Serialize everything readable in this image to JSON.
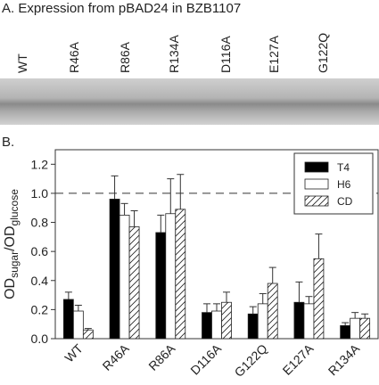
{
  "panel_a": {
    "title": "A. Expression from pBAD24 in BZB1107",
    "lanes": [
      "WT",
      "R46A",
      "R86A",
      "R134A",
      "D116A",
      "E127A",
      "G122Q"
    ]
  },
  "panel_b_label": "B.",
  "chart_data": {
    "type": "bar",
    "ylabel": [
      "OD",
      "sugar",
      "/OD",
      "glucose"
    ],
    "categories": [
      "WT",
      "R46A",
      "R86A",
      "D116A",
      "G122Q",
      "E127A",
      "R134A"
    ],
    "series": [
      {
        "name": "T4",
        "color": "#000000",
        "pattern": "solid",
        "values": [
          0.27,
          0.96,
          0.73,
          0.18,
          0.17,
          0.25,
          0.09
        ],
        "errors": [
          0.05,
          0.16,
          0.12,
          0.06,
          0.05,
          0.14,
          0.02
        ]
      },
      {
        "name": "H6",
        "color": "#ffffff",
        "pattern": "solid",
        "values": [
          0.19,
          0.85,
          0.86,
          0.19,
          0.24,
          0.24,
          0.14
        ],
        "errors": [
          0.04,
          0.08,
          0.24,
          0.05,
          0.07,
          0.05,
          0.04
        ]
      },
      {
        "name": "CD",
        "color": "#ffffff",
        "pattern": "hatch",
        "values": [
          0.06,
          0.77,
          0.89,
          0.25,
          0.38,
          0.55,
          0.14
        ],
        "errors": [
          0.01,
          0.11,
          0.24,
          0.07,
          0.11,
          0.17,
          0.03
        ]
      }
    ],
    "ylim": [
      0,
      1.3
    ],
    "yticks": [
      {
        "value": 0,
        "label": "0.0"
      },
      0.2,
      0.4,
      0.6,
      0.8,
      {
        "value": 1,
        "label": "1.0"
      },
      1.2
    ],
    "reference_line": 1,
    "legend": "upper right"
  }
}
